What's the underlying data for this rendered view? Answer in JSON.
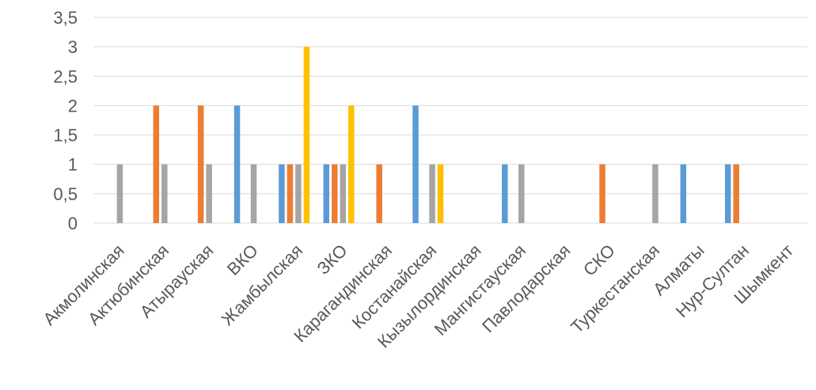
{
  "chart_data": {
    "type": "bar",
    "title": "",
    "xlabel": "",
    "ylabel": "",
    "ylim": [
      0,
      3.5
    ],
    "yticks": [
      "0",
      "0,5",
      "1",
      "1,5",
      "2",
      "2,5",
      "3",
      "3,5"
    ],
    "grid": true,
    "legend": "none",
    "categories": [
      "Акмолинская",
      "Актюбинская",
      "Атырауская",
      "ВКО",
      "Жамбылская",
      "ЗКО",
      "Карагандинская",
      "Костанайская",
      "Кызылординская",
      "Мангистауская",
      "Павлодарская",
      "СКО",
      "Туркестанская",
      "Алматы",
      "Нур-Султан",
      "Шымкент"
    ],
    "series": [
      {
        "color": "#5b9bd5",
        "values": [
          0,
          0,
          0,
          2,
          1,
          1,
          0,
          2,
          0,
          1,
          0,
          0,
          0,
          1,
          1,
          0
        ]
      },
      {
        "color": "#ed7d31",
        "values": [
          0,
          2,
          2,
          0,
          1,
          1,
          1,
          0,
          0,
          0,
          0,
          1,
          0,
          0,
          1,
          0
        ]
      },
      {
        "color": "#a5a5a5",
        "values": [
          1,
          1,
          1,
          1,
          1,
          1,
          0,
          1,
          0,
          1,
          0,
          0,
          1,
          0,
          0,
          0
        ]
      },
      {
        "color": "#ffc000",
        "values": [
          0,
          0,
          0,
          0,
          3,
          2,
          0,
          1,
          0,
          0,
          0,
          0,
          0,
          0,
          0,
          0
        ]
      }
    ]
  }
}
